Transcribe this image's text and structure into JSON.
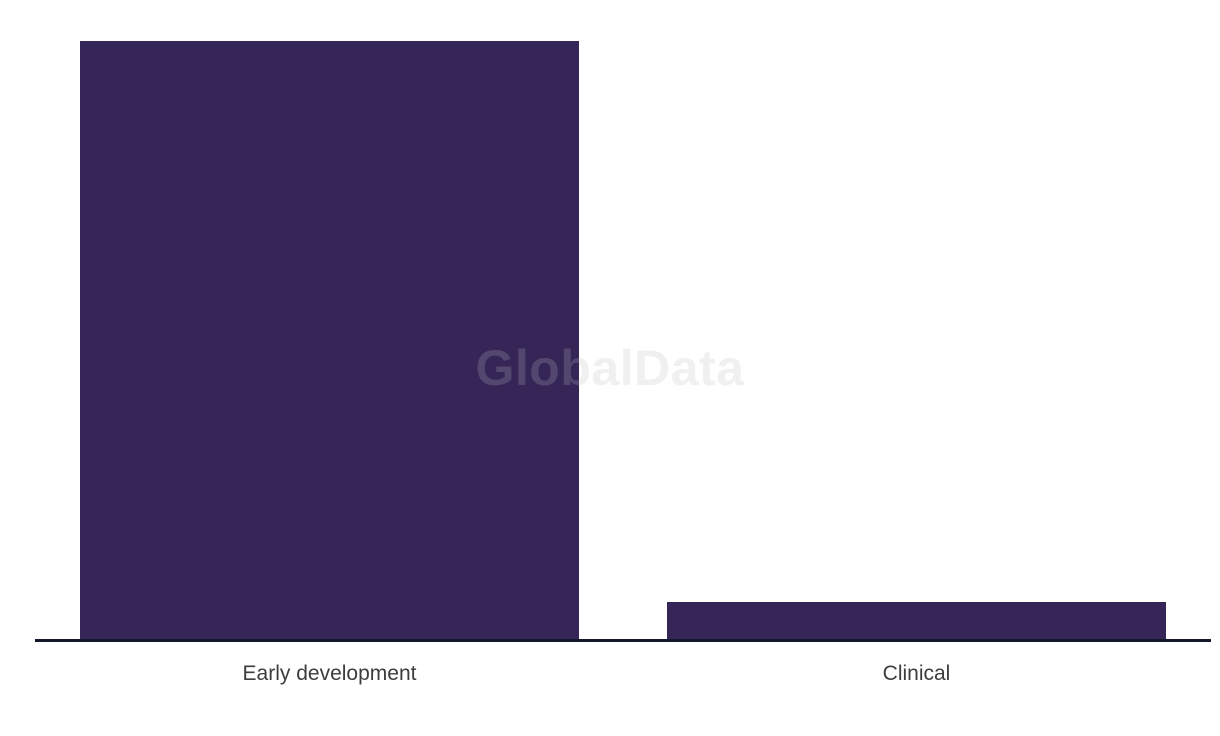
{
  "watermark": {
    "text": "GlobalData",
    "color": "#bcbcc3",
    "opacity": 0.22
  },
  "chart": {
    "background": "#ffffff",
    "bar_color": "#362657",
    "axis_color": "#14182b",
    "label_color": "#3d3d3d"
  },
  "chart_data": {
    "type": "bar",
    "categories": [
      "Early development",
      "Clinical"
    ],
    "values": [
      1.0,
      0.062
    ],
    "title": "",
    "xlabel": "",
    "ylabel": "",
    "ylim": [
      0,
      1.0
    ],
    "grid": false,
    "legend": false,
    "value_axis_visible": false,
    "orientation": "vertical"
  }
}
